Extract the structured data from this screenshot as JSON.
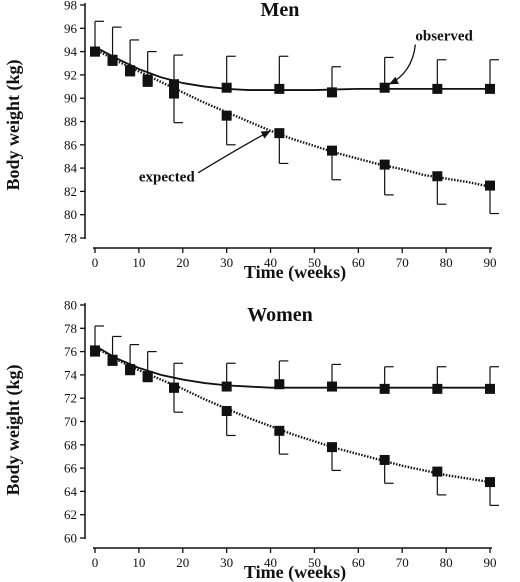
{
  "chart_data": [
    {
      "type": "line",
      "title": "Men",
      "xlabel": "Time (weeks)",
      "ylabel": "Body weight (kg)",
      "xlim": [
        0,
        90
      ],
      "ylim": [
        78,
        98
      ],
      "xticks": [
        0,
        10,
        20,
        30,
        40,
        50,
        60,
        70,
        80,
        90
      ],
      "yticks": [
        78,
        80,
        82,
        84,
        86,
        88,
        90,
        92,
        94,
        96,
        98
      ],
      "grid": false,
      "series": [
        {
          "name": "observed",
          "style": "solid",
          "x": [
            0,
            4,
            8,
            12,
            18,
            30,
            42,
            54,
            66,
            78,
            90
          ],
          "y": [
            94.0,
            93.3,
            92.4,
            91.6,
            91.2,
            90.9,
            90.8,
            90.5,
            90.9,
            90.8,
            90.8
          ],
          "error": [
            2.6,
            2.8,
            2.6,
            2.4,
            2.5,
            2.7,
            2.8,
            2.2,
            2.6,
            2.5,
            2.5
          ],
          "curve_x": [
            0,
            5,
            10,
            15,
            20,
            25,
            30,
            35,
            40,
            45,
            50,
            55,
            60,
            65,
            70,
            75,
            80,
            85,
            90
          ],
          "curve_y": [
            94.4,
            93.4,
            92.5,
            91.8,
            91.3,
            91.0,
            90.8,
            90.7,
            90.7,
            90.7,
            90.7,
            90.75,
            90.8,
            90.8,
            90.8,
            90.8,
            90.8,
            90.8,
            90.8
          ]
        },
        {
          "name": "expected",
          "style": "dotted",
          "x": [
            0,
            4,
            8,
            12,
            18,
            30,
            42,
            54,
            66,
            78,
            90
          ],
          "y": [
            94.0,
            93.2,
            92.3,
            91.4,
            90.4,
            88.5,
            87.0,
            85.5,
            84.3,
            83.3,
            82.5
          ],
          "error": [
            0,
            0,
            0,
            0,
            2.5,
            2.5,
            2.6,
            2.5,
            2.6,
            2.4,
            2.4
          ],
          "curve_x": [
            0,
            5,
            10,
            15,
            20,
            25,
            30,
            35,
            40,
            45,
            50,
            55,
            60,
            65,
            70,
            75,
            80,
            85,
            90
          ],
          "curve_y": [
            94.2,
            93.2,
            92.3,
            91.4,
            90.5,
            89.6,
            88.8,
            88.0,
            87.2,
            86.5,
            85.9,
            85.3,
            84.8,
            84.3,
            83.9,
            83.4,
            83.1,
            82.8,
            82.4
          ]
        }
      ],
      "annotations": [
        {
          "text": "observed",
          "pos": [
            73,
            95.4
          ],
          "arrow_from": [
            73,
            94.6
          ],
          "arrow_to": [
            67,
            91.2
          ]
        },
        {
          "text": "expected",
          "pos": [
            10,
            83.3
          ],
          "arrow_from": [
            23.5,
            83.6
          ],
          "arrow_to": [
            40,
            87.2
          ]
        }
      ]
    },
    {
      "type": "line",
      "title": "Women",
      "xlabel": "Time (weeks)",
      "ylabel": "Body weight (kg)",
      "xlim": [
        0,
        90
      ],
      "ylim": [
        60,
        80
      ],
      "xticks": [
        0,
        10,
        20,
        30,
        40,
        50,
        60,
        70,
        80,
        90
      ],
      "yticks": [
        60,
        62,
        64,
        66,
        68,
        70,
        72,
        74,
        76,
        78,
        80
      ],
      "grid": false,
      "series": [
        {
          "name": "observed",
          "style": "solid",
          "x": [
            0,
            4,
            8,
            12,
            18,
            30,
            42,
            54,
            66,
            78,
            90
          ],
          "y": [
            76.1,
            75.3,
            74.5,
            73.9,
            72.9,
            73.0,
            73.2,
            73.0,
            72.8,
            72.8,
            72.8
          ],
          "error": [
            2.1,
            2.0,
            2.1,
            2.1,
            2.1,
            2.0,
            2.0,
            1.9,
            1.9,
            1.9,
            1.9
          ],
          "curve_x": [
            0,
            5,
            10,
            15,
            20,
            25,
            30,
            35,
            40,
            45,
            50,
            55,
            60,
            65,
            70,
            75,
            80,
            85,
            90
          ],
          "curve_y": [
            76.5,
            75.4,
            74.6,
            74.0,
            73.6,
            73.3,
            73.1,
            73.0,
            72.9,
            72.9,
            72.9,
            72.9,
            72.9,
            72.9,
            72.9,
            72.9,
            72.9,
            72.9,
            72.9
          ]
        },
        {
          "name": "expected",
          "style": "dotted",
          "x": [
            0,
            4,
            8,
            12,
            18,
            30,
            42,
            54,
            66,
            78,
            90
          ],
          "y": [
            76.0,
            75.2,
            74.4,
            73.8,
            72.9,
            70.9,
            69.2,
            67.8,
            66.7,
            65.7,
            64.8
          ],
          "error": [
            0,
            0,
            0,
            0,
            2.1,
            2.1,
            2.0,
            2.0,
            2.0,
            2.0,
            2.0
          ],
          "curve_x": [
            0,
            5,
            10,
            15,
            20,
            25,
            30,
            35,
            40,
            45,
            50,
            55,
            60,
            65,
            70,
            75,
            80,
            85,
            90
          ],
          "curve_y": [
            76.4,
            75.3,
            74.4,
            73.6,
            72.8,
            71.9,
            71.1,
            70.3,
            69.6,
            68.9,
            68.3,
            67.7,
            67.2,
            66.7,
            66.2,
            65.8,
            65.4,
            65.1,
            64.8
          ]
        }
      ],
      "annotations": []
    }
  ]
}
